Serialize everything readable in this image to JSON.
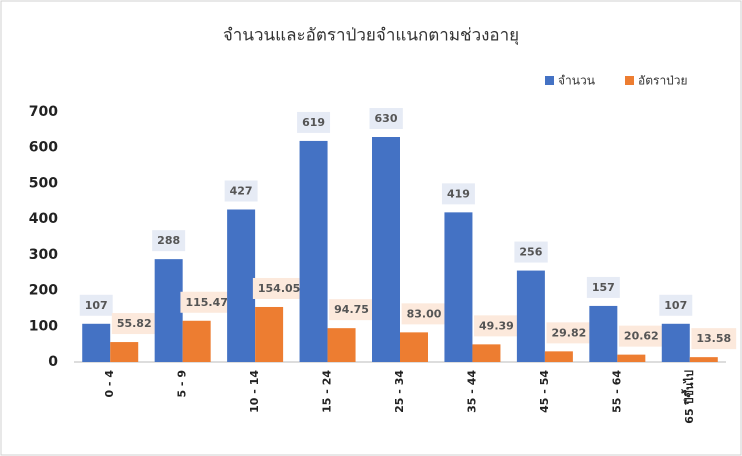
{
  "chart_data": {
    "type": "bar",
    "title": "จำนวนและอัตราป่วยจำแนกตามช่วงอายุ",
    "categories": [
      "0 - 4",
      "5 - 9",
      "10 - 14",
      "15 - 24",
      "25 - 34",
      "35 - 44",
      "45 - 54",
      "55 - 64",
      "65 ปีขึ้นไป"
    ],
    "series": [
      {
        "name": "จำนวน",
        "color": "#4472c4",
        "values": [
          107,
          288,
          427,
          619,
          630,
          419,
          256,
          157,
          107
        ]
      },
      {
        "name": "อัตราป่วย",
        "color": "#ed7d31",
        "values": [
          55.82,
          115.47,
          154.05,
          94.75,
          83.0,
          49.39,
          29.82,
          20.62,
          13.58
        ],
        "value_labels": [
          "55.82",
          "115.47",
          "154.05",
          "94.75",
          "83.00",
          "49.39",
          "29.82",
          "20.62",
          "13.58"
        ]
      }
    ],
    "ylim": [
      0,
      700
    ],
    "yticks": [
      0,
      100,
      200,
      300,
      400,
      500,
      600,
      700
    ],
    "grid": false,
    "legend": "top-right"
  }
}
